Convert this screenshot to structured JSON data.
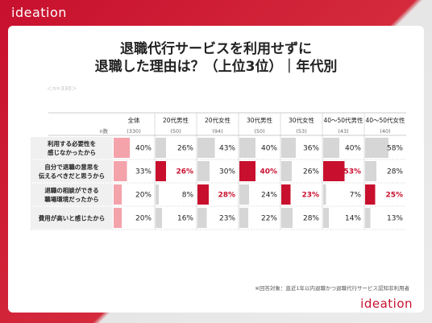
{
  "brand": "ideation",
  "title_line1": "退職代行サービスを利用せずに",
  "title_line2": "退職した理由は？（上位3位）｜年代別",
  "sample": "＜n=330＞",
  "footnote": "※回答対象：直近1年以内退職かつ退職代行サービス認知非利用者",
  "colors": {
    "accent": "#c8102e",
    "highlight_bar": "#c8102e",
    "total_bar": "#f4a3ab",
    "normal_bar": "#d6d6d6"
  },
  "chart_data": {
    "type": "table",
    "n_label": "n数",
    "columns": [
      "全体",
      "20代男性",
      "20代女性",
      "30代男性",
      "30代女性",
      "40～50代男性",
      "40～50代女性"
    ],
    "n_values": [
      "(330)",
      "(50)",
      "(94)",
      "(50)",
      "(53)",
      "(43)",
      "(40)"
    ],
    "rows": [
      {
        "label": [
          "利用する必要性を",
          "感じなかったから"
        ],
        "values": [
          40,
          26,
          43,
          40,
          36,
          40,
          58
        ],
        "display": [
          "40%",
          "26%",
          "43%",
          "40%",
          "36%",
          "40%",
          "58%"
        ],
        "highlight": [
          false,
          false,
          false,
          false,
          false,
          false,
          false
        ]
      },
      {
        "label": [
          "自分で退職の意思を",
          "伝えるべきだと思うから"
        ],
        "values": [
          33,
          26,
          30,
          40,
          26,
          53,
          28
        ],
        "display": [
          "33%",
          "26%",
          "30%",
          "40%",
          "26%",
          "53%",
          "28%"
        ],
        "highlight": [
          false,
          true,
          false,
          true,
          false,
          true,
          false
        ]
      },
      {
        "label": [
          "退職の相談ができる",
          "職場環境だったから"
        ],
        "values": [
          20,
          8,
          28,
          24,
          23,
          7,
          25
        ],
        "display": [
          "20%",
          "8%",
          "28%",
          "24%",
          "23%",
          "7%",
          "25%"
        ],
        "highlight": [
          false,
          false,
          true,
          false,
          true,
          false,
          true
        ]
      },
      {
        "label": [
          "費用が高いと感じたから"
        ],
        "values": [
          20,
          16,
          23,
          22,
          28,
          14,
          13
        ],
        "display": [
          "20%",
          "16%",
          "23%",
          "22%",
          "28%",
          "14%",
          "13%"
        ],
        "highlight": [
          false,
          false,
          false,
          false,
          false,
          false,
          false
        ]
      }
    ],
    "ylim": [
      0,
      100
    ]
  }
}
